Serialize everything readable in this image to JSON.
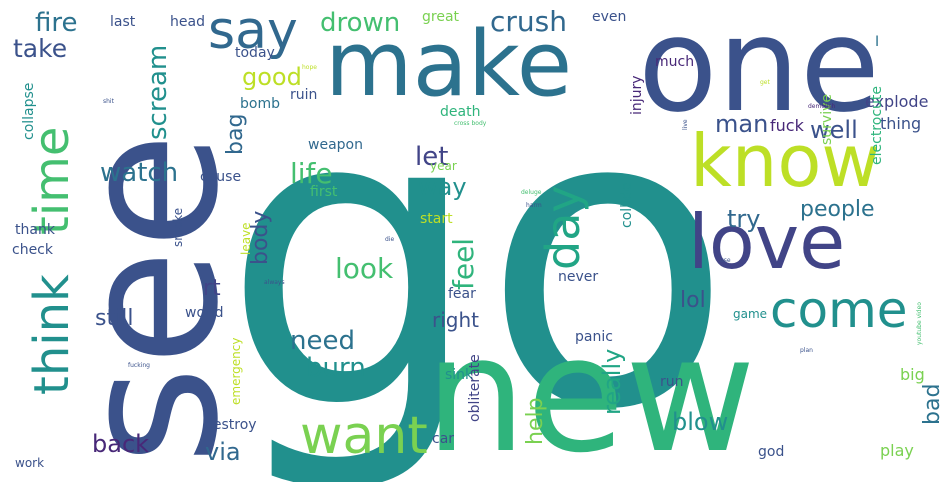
{
  "words": [
    {
      "text": "go",
      "color": "#21908d"
    },
    {
      "text": "see",
      "color": "#3b528b"
    },
    {
      "text": "one",
      "color": "#3b528b"
    },
    {
      "text": "new",
      "color": "#2fb47c"
    },
    {
      "text": "make",
      "color": "#2c728e"
    },
    {
      "text": "know",
      "color": "#bddf26"
    },
    {
      "text": "love",
      "color": "#414487"
    },
    {
      "text": "think",
      "color": "#21908d"
    },
    {
      "text": "time",
      "color": "#44bf70"
    },
    {
      "text": "say",
      "color": "#31688e"
    },
    {
      "text": "want",
      "color": "#7ad151"
    },
    {
      "text": "day",
      "color": "#21a585"
    },
    {
      "text": "come",
      "color": "#21908d"
    },
    {
      "text": "drown",
      "color": "#44bf70"
    },
    {
      "text": "crush",
      "color": "#31688e"
    },
    {
      "text": "fire",
      "color": "#2c728e"
    },
    {
      "text": "take",
      "color": "#3b528b"
    },
    {
      "text": "scream",
      "color": "#21908d"
    },
    {
      "text": "good",
      "color": "#bddf26"
    },
    {
      "text": "bag",
      "color": "#31688e"
    },
    {
      "text": "watch",
      "color": "#2c728e"
    },
    {
      "text": "life",
      "color": "#44bf70"
    },
    {
      "text": "let",
      "color": "#414487"
    },
    {
      "text": "way",
      "color": "#21908d"
    },
    {
      "text": "man",
      "color": "#3b528b"
    },
    {
      "text": "well",
      "color": "#3b528b"
    },
    {
      "text": "try",
      "color": "#31688e"
    },
    {
      "text": "people",
      "color": "#2c728e"
    },
    {
      "text": "body",
      "color": "#3b528b"
    },
    {
      "text": "look",
      "color": "#44bf70"
    },
    {
      "text": "feel",
      "color": "#2fb47c"
    },
    {
      "text": "rt",
      "color": "#414487"
    },
    {
      "text": "lol",
      "color": "#3b528b"
    },
    {
      "text": "still",
      "color": "#3b528b"
    },
    {
      "text": "need",
      "color": "#2c728e"
    },
    {
      "text": "burn",
      "color": "#21908d"
    },
    {
      "text": "right",
      "color": "#3b528b"
    },
    {
      "text": "back",
      "color": "#482878"
    },
    {
      "text": "via",
      "color": "#31688e"
    },
    {
      "text": "help",
      "color": "#7ad151"
    },
    {
      "text": "really",
      "color": "#21a585"
    },
    {
      "text": "blow",
      "color": "#21908d"
    },
    {
      "text": "bad",
      "color": "#2c728e"
    },
    {
      "text": "fuck",
      "color": "#482878"
    },
    {
      "text": "thing",
      "color": "#3b528b"
    },
    {
      "text": "explode",
      "color": "#414487"
    },
    {
      "text": "electrocute",
      "color": "#2fb47c"
    },
    {
      "text": "survive",
      "color": "#7ad151"
    },
    {
      "text": "injury",
      "color": "#482878"
    },
    {
      "text": "much",
      "color": "#482878"
    },
    {
      "text": "even",
      "color": "#3b528b"
    },
    {
      "text": "great",
      "color": "#7ad151"
    },
    {
      "text": "head",
      "color": "#3b528b"
    },
    {
      "text": "last",
      "color": "#3b528b"
    },
    {
      "text": "today",
      "color": "#3b528b"
    },
    {
      "text": "bomb",
      "color": "#2c728e"
    },
    {
      "text": "ruin",
      "color": "#3b528b"
    },
    {
      "text": "death",
      "color": "#2fb47c"
    },
    {
      "text": "year",
      "color": "#7ad151"
    },
    {
      "text": "weapon",
      "color": "#31688e"
    },
    {
      "text": "cause",
      "color": "#3b528b"
    },
    {
      "text": "first",
      "color": "#44bf70"
    },
    {
      "text": "start",
      "color": "#bddf26"
    },
    {
      "text": "collide",
      "color": "#21908d"
    },
    {
      "text": "never",
      "color": "#3b528b"
    },
    {
      "text": "fear",
      "color": "#3b528b"
    },
    {
      "text": "panic",
      "color": "#3b528b"
    },
    {
      "text": "game",
      "color": "#21908d"
    },
    {
      "text": "run",
      "color": "#3b528b"
    },
    {
      "text": "sink",
      "color": "#21908d"
    },
    {
      "text": "obliterate",
      "color": "#414487"
    },
    {
      "text": "big",
      "color": "#7ad151"
    },
    {
      "text": "play",
      "color": "#7ad151"
    },
    {
      "text": "god",
      "color": "#3b528b"
    },
    {
      "text": "car",
      "color": "#3b528b"
    },
    {
      "text": "destroy",
      "color": "#3b528b"
    },
    {
      "text": "world",
      "color": "#3b528b"
    },
    {
      "text": "emergency",
      "color": "#bddf26"
    },
    {
      "text": "leave",
      "color": "#bddf26"
    },
    {
      "text": "smoke",
      "color": "#3b528b"
    },
    {
      "text": "check",
      "color": "#3b528b"
    },
    {
      "text": "thank",
      "color": "#3b528b"
    },
    {
      "text": "collapse",
      "color": "#21908d"
    },
    {
      "text": "work",
      "color": "#3b528b"
    },
    {
      "text": "die",
      "color": "#3b528b"
    },
    {
      "text": "fucking",
      "color": "#3b528b"
    },
    {
      "text": "always",
      "color": "#3b528b"
    },
    {
      "text": "shit",
      "color": "#3b528b"
    },
    {
      "text": "hope",
      "color": "#bddf26"
    },
    {
      "text": "cross body",
      "color": "#44bf70"
    },
    {
      "text": "deluge",
      "color": "#44bf70"
    },
    {
      "text": "harm",
      "color": "#3b528b"
    },
    {
      "text": "demolish",
      "color": "#482878"
    },
    {
      "text": "youtube video",
      "color": "#44bf70"
    },
    {
      "text": "use",
      "color": "#3b528b"
    },
    {
      "text": "plan",
      "color": "#3b528b"
    },
    {
      "text": "live",
      "color": "#3b528b"
    },
    {
      "text": "get",
      "color": "#bddf26"
    },
    {
      "text": "I",
      "color": "#2c728e"
    }
  ]
}
